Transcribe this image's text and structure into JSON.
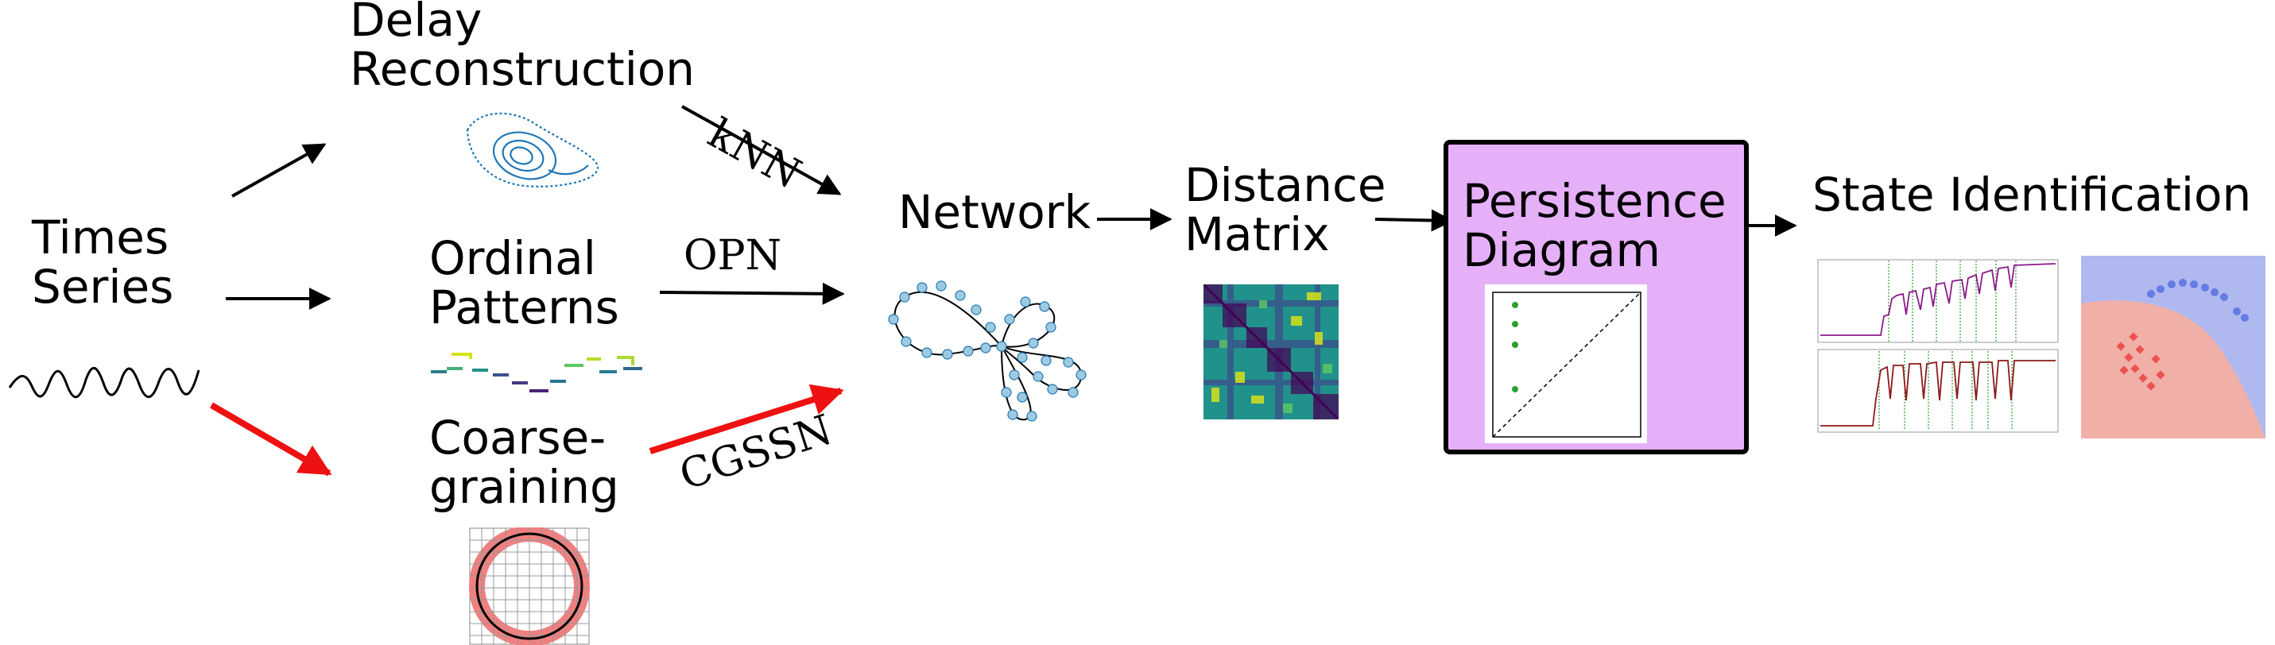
{
  "labels": {
    "times_series": [
      "Times",
      "Series"
    ],
    "delay_reconstruction": [
      "Delay",
      "Reconstruction"
    ],
    "ordinal_patterns": [
      "Ordinal",
      "Patterns"
    ],
    "coarse_graining": [
      "Coarse-",
      "graining"
    ],
    "network": "Network",
    "distance_matrix": [
      "Distance",
      "Matrix"
    ],
    "persistence_diagram": [
      "Persistence",
      "Diagram"
    ],
    "state_identification": "State Identification"
  },
  "edge_labels": {
    "knn": "kNN",
    "opn": "OPN",
    "cgssn": "CGSSN"
  },
  "colors": {
    "highlight_arrow": "#ee1111",
    "persistence_fill": "#e6b0f8",
    "attractor": "#1f77b4",
    "network_node": "#9ecae1",
    "grid_fill": "#f08080",
    "region_blue": "#b0b8f0",
    "region_red": "#f0b0a8"
  }
}
